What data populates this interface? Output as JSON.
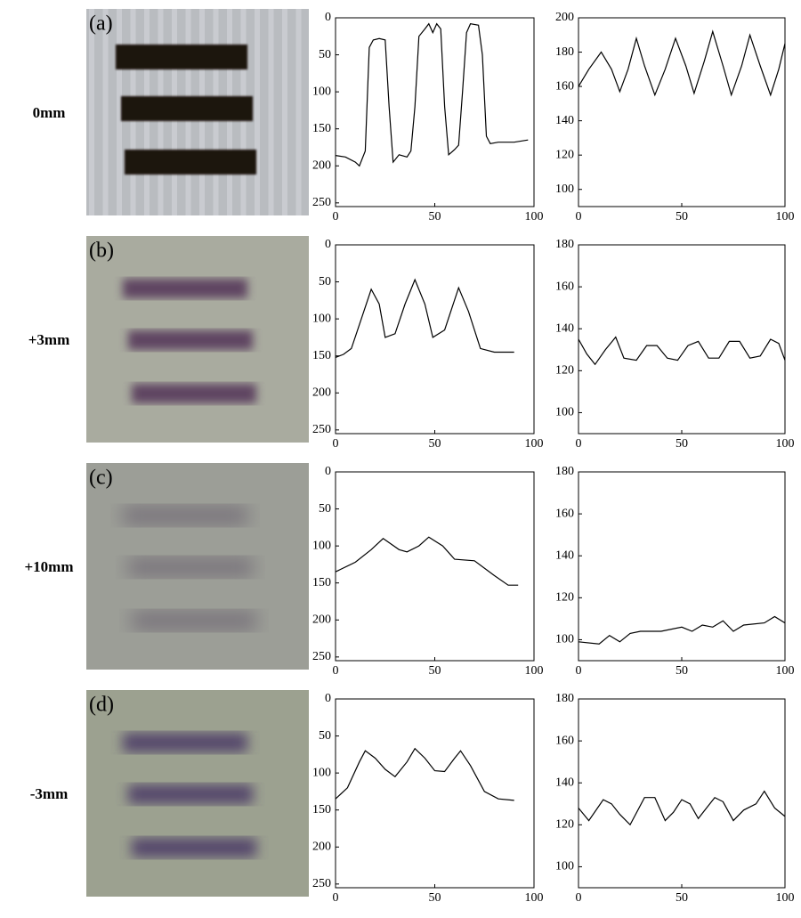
{
  "rows": [
    {
      "label": "0mm",
      "panel": "(a)"
    },
    {
      "label": "+3mm",
      "panel": "(b)"
    },
    {
      "label": "+10mm",
      "panel": "(c)"
    },
    {
      "label": "-3mm",
      "panel": "(d)"
    }
  ],
  "chart_data": [
    {
      "type": "line",
      "color": "#000000",
      "xlim": [
        0,
        100
      ],
      "xticks": [
        0,
        50,
        100
      ],
      "ylim": [
        255,
        0
      ],
      "yticks": [
        0,
        50,
        100,
        150,
        200,
        250
      ],
      "x": [
        0,
        5,
        10,
        12,
        15,
        17,
        19,
        22,
        25,
        27,
        29,
        32,
        36,
        38,
        40,
        42,
        45,
        47,
        49,
        51,
        53,
        55,
        57,
        60,
        62,
        64,
        66,
        68,
        72,
        74,
        76,
        78,
        82,
        90,
        97
      ],
      "values": [
        186,
        188,
        195,
        200,
        180,
        40,
        30,
        28,
        30,
        120,
        195,
        185,
        188,
        180,
        120,
        25,
        15,
        8,
        20,
        8,
        15,
        120,
        185,
        178,
        172,
        100,
        20,
        8,
        10,
        50,
        160,
        170,
        168,
        168,
        165
      ]
    },
    {
      "type": "line",
      "color": "#000000",
      "xlim": [
        0,
        100
      ],
      "xticks": [
        0,
        50,
        100
      ],
      "ylim": [
        90,
        200
      ],
      "yticks": [
        100,
        120,
        140,
        160,
        180,
        200
      ],
      "x": [
        0,
        5,
        11,
        16,
        20,
        24,
        28,
        32,
        37,
        42,
        47,
        52,
        56,
        61,
        65,
        70,
        74,
        79,
        83,
        88,
        93,
        97,
        100
      ],
      "values": [
        160,
        170,
        180,
        170,
        157,
        170,
        188,
        172,
        155,
        170,
        188,
        172,
        156,
        175,
        192,
        172,
        155,
        172,
        190,
        172,
        155,
        170,
        185
      ]
    },
    {
      "type": "line",
      "color": "#000000",
      "xlim": [
        0,
        100
      ],
      "xticks": [
        0,
        50,
        100
      ],
      "ylim": [
        255,
        0
      ],
      "yticks": [
        0,
        50,
        100,
        150,
        200,
        250
      ],
      "x": [
        0,
        4,
        8,
        13,
        18,
        22,
        25,
        30,
        35,
        40,
        45,
        49,
        55,
        62,
        67,
        73,
        80,
        90
      ],
      "values": [
        152,
        148,
        140,
        100,
        60,
        80,
        125,
        120,
        80,
        47,
        80,
        125,
        115,
        58,
        90,
        140,
        145,
        145
      ]
    },
    {
      "type": "line",
      "color": "#000000",
      "xlim": [
        0,
        100
      ],
      "xticks": [
        0,
        50,
        100
      ],
      "ylim": [
        90,
        180
      ],
      "yticks": [
        100,
        120,
        140,
        160,
        180
      ],
      "x": [
        0,
        4,
        8,
        13,
        18,
        22,
        28,
        33,
        38,
        43,
        48,
        53,
        58,
        63,
        68,
        73,
        78,
        83,
        88,
        93,
        97,
        100
      ],
      "values": [
        135,
        128,
        123,
        130,
        136,
        126,
        125,
        132,
        132,
        126,
        125,
        132,
        134,
        126,
        126,
        134,
        134,
        126,
        127,
        135,
        133,
        125
      ]
    },
    {
      "type": "line",
      "color": "#000000",
      "xlim": [
        0,
        100
      ],
      "xticks": [
        0,
        50,
        100
      ],
      "ylim": [
        255,
        0
      ],
      "yticks": [
        0,
        50,
        100,
        150,
        200,
        250
      ],
      "x": [
        0,
        10,
        18,
        24,
        32,
        36,
        42,
        47,
        54,
        60,
        70,
        80,
        87,
        92
      ],
      "values": [
        135,
        122,
        105,
        90,
        105,
        108,
        100,
        88,
        100,
        118,
        120,
        140,
        153,
        153
      ]
    },
    {
      "type": "line",
      "color": "#000000",
      "xlim": [
        0,
        100
      ],
      "xticks": [
        0,
        50,
        100
      ],
      "ylim": [
        90,
        180
      ],
      "yticks": [
        100,
        120,
        140,
        160,
        180
      ],
      "x": [
        0,
        10,
        15,
        20,
        25,
        30,
        40,
        50,
        55,
        60,
        65,
        70,
        75,
        80,
        90,
        95,
        100
      ],
      "values": [
        99,
        98,
        102,
        99,
        103,
        104,
        104,
        106,
        104,
        107,
        106,
        109,
        104,
        107,
        108,
        111,
        108
      ]
    },
    {
      "type": "line",
      "color": "#000000",
      "xlim": [
        0,
        100
      ],
      "xticks": [
        0,
        50,
        100
      ],
      "ylim": [
        255,
        0
      ],
      "yticks": [
        0,
        50,
        100,
        150,
        200,
        250
      ],
      "x": [
        0,
        6,
        12,
        15,
        20,
        25,
        30,
        36,
        40,
        45,
        50,
        55,
        60,
        63,
        68,
        75,
        82,
        90
      ],
      "values": [
        135,
        120,
        85,
        70,
        80,
        95,
        105,
        85,
        67,
        80,
        97,
        98,
        80,
        70,
        90,
        125,
        135,
        137
      ]
    },
    {
      "type": "line",
      "color": "#000000",
      "xlim": [
        0,
        100
      ],
      "xticks": [
        0,
        50,
        100
      ],
      "ylim": [
        90,
        180
      ],
      "yticks": [
        100,
        120,
        140,
        160,
        180
      ],
      "x": [
        0,
        5,
        12,
        16,
        20,
        25,
        32,
        37,
        42,
        46,
        50,
        54,
        58,
        62,
        66,
        70,
        75,
        80,
        86,
        90,
        95,
        100
      ],
      "values": [
        128,
        122,
        132,
        130,
        125,
        120,
        133,
        133,
        122,
        126,
        132,
        130,
        123,
        128,
        133,
        131,
        122,
        127,
        130,
        136,
        128,
        124
      ]
    }
  ]
}
